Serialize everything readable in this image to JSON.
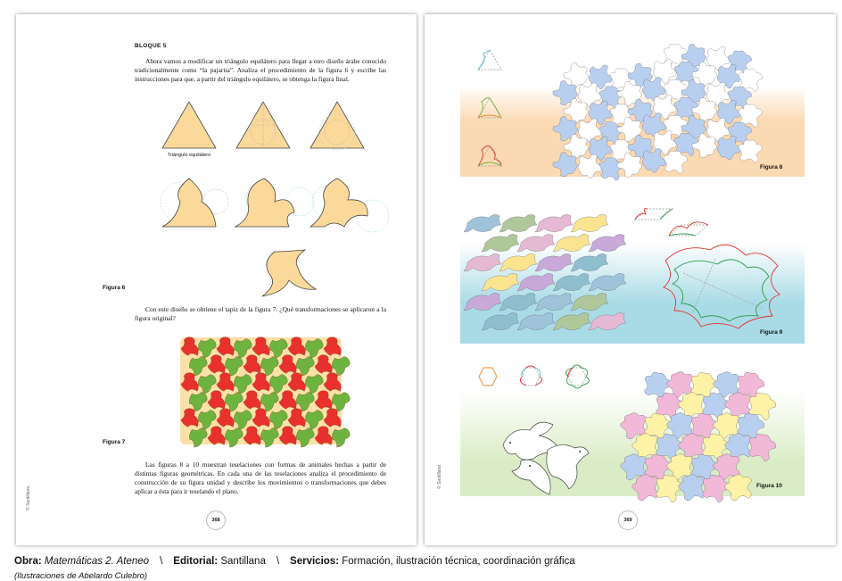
{
  "left_page": {
    "block_title": "BLOQUE 5",
    "paragraph_1": "Ahora vamos a modificar un triángulo equilátero para llegar a otro diseño árabe conocido tradicionalmente como “la pajarita”. Analiza el procedimiento de la figura 6 y escribe las instrucciones para que, a partir del triángulo equilátero, se obtenga la figura final.",
    "triangle_label": "Triángulo equilátero",
    "figure_6_label": "Figura 6",
    "paragraph_2": "Con este diseño se obtiene el tapiz de la figura 7. ¿Qué transformaciones se aplicaron a la figura original?",
    "figure_7_label": "Figura 7",
    "paragraph_3": "Las figuras 8 a 10 muestran teselaciones con formas de animales hechas a partir de distintas figuras geométricas. En cada una de las teselaciones analiza el procedimiento de construcción de su figura unidad y describe los movimientos o transformaciones que debes aplicar a ésta para ir teselando el plano.",
    "side_credit": "© Santillana",
    "page_number": "368"
  },
  "right_page": {
    "figure_8_label": "Figura 8",
    "figure_9_label": "Figura 9",
    "figure_10_label": "Figura 10",
    "side_credit": "© Santillana",
    "page_number": "369"
  },
  "credits": {
    "obra_label": "Obra:",
    "obra_value": "Matemáticas 2. Ateneo",
    "separator": "\\",
    "editorial_label": "Editorial:",
    "editorial_value": "Santillana",
    "servicios_label": "Servicios:",
    "servicios_value": "Formación, ilustración técnica, coordinación gráfica",
    "illustrations": "(Ilustraciones de Abelardo Culebro)"
  },
  "colors": {
    "triangle_fill": "#fbd99a",
    "tile_red": "#e8312d",
    "tile_green": "#6db33f",
    "tile_cream": "#fbe1a8",
    "bird_blue": "#b9cff0",
    "band_orange": "#fbd9b2",
    "band_cyan": "#a9dbe6",
    "band_green": "#d9ecc5",
    "bird_pink": "#f2b8d8",
    "bird_yellow": "#fdf2a6"
  }
}
